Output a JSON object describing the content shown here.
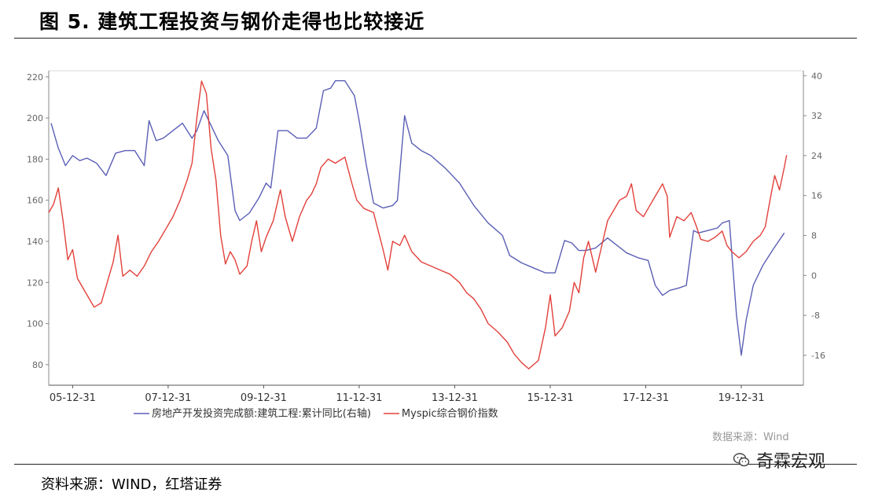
{
  "header": {
    "title": "图 5. 建筑工程投资与钢价走得也比较接近"
  },
  "footer": {
    "source": "资料来源：WIND，红塔证券",
    "data_source": "数据来源：Wind",
    "watermark_icon": "wechat-icon",
    "watermark": "奇霖宏观"
  },
  "chart_data": {
    "type": "line",
    "title": "",
    "xlabel": "",
    "x_ticks": [
      "05-12-31",
      "07-12-31",
      "09-12-31",
      "11-12-31",
      "13-12-31",
      "15-12-31",
      "17-12-31",
      "19-12-31"
    ],
    "x_range": [
      2005.0,
      2020.8
    ],
    "y_left": {
      "ticks": [
        80,
        100,
        120,
        140,
        160,
        180,
        200,
        220
      ],
      "range": [
        70,
        223
      ]
    },
    "y_right": {
      "ticks": [
        -16,
        -8,
        0,
        8,
        16,
        24,
        32,
        40
      ],
      "range": [
        -22,
        41
      ]
    },
    "legend_position": "bottom-left",
    "grid": false,
    "series": [
      {
        "name": "房地产开发投资完成额:建筑工程:累计同比(右轴)",
        "axis": "right",
        "color": "#5b5fb5",
        "points": [
          [
            2005.05,
            30.5
          ],
          [
            2005.2,
            25.5
          ],
          [
            2005.35,
            22.0
          ],
          [
            2005.5,
            24.0
          ],
          [
            2005.65,
            23.0
          ],
          [
            2005.8,
            23.5
          ],
          [
            2006.0,
            22.5
          ],
          [
            2006.2,
            20.0
          ],
          [
            2006.4,
            24.5
          ],
          [
            2006.6,
            25.0
          ],
          [
            2006.8,
            25.0
          ],
          [
            2007.0,
            22.0
          ],
          [
            2007.1,
            31.0
          ],
          [
            2007.25,
            27.0
          ],
          [
            2007.4,
            27.5
          ],
          [
            2007.6,
            29.0
          ],
          [
            2007.8,
            30.5
          ],
          [
            2008.0,
            27.5
          ],
          [
            2008.1,
            29.0
          ],
          [
            2008.25,
            33.0
          ],
          [
            2008.4,
            30.0
          ],
          [
            2008.55,
            27.0
          ],
          [
            2008.75,
            24.0
          ],
          [
            2008.9,
            13.0
          ],
          [
            2009.0,
            11.0
          ],
          [
            2009.2,
            12.5
          ],
          [
            2009.4,
            15.5
          ],
          [
            2009.55,
            18.5
          ],
          [
            2009.65,
            17.5
          ],
          [
            2009.8,
            29.0
          ],
          [
            2010.0,
            29.0
          ],
          [
            2010.2,
            27.5
          ],
          [
            2010.4,
            27.5
          ],
          [
            2010.6,
            29.5
          ],
          [
            2010.75,
            37.0
          ],
          [
            2010.9,
            37.5
          ],
          [
            2011.0,
            39.0
          ],
          [
            2011.2,
            39.0
          ],
          [
            2011.4,
            36.0
          ],
          [
            2011.5,
            31.0
          ],
          [
            2011.65,
            22.0
          ],
          [
            2011.8,
            14.5
          ],
          [
            2012.0,
            13.5
          ],
          [
            2012.2,
            14.0
          ],
          [
            2012.3,
            15.0
          ],
          [
            2012.45,
            32.0
          ],
          [
            2012.6,
            26.5
          ],
          [
            2012.8,
            25.0
          ],
          [
            2013.0,
            24.0
          ],
          [
            2013.3,
            21.5
          ],
          [
            2013.6,
            18.5
          ],
          [
            2013.9,
            14.0
          ],
          [
            2014.2,
            10.5
          ],
          [
            2014.5,
            8.0
          ],
          [
            2014.65,
            4.0
          ],
          [
            2014.9,
            2.5
          ],
          [
            2015.15,
            1.5
          ],
          [
            2015.4,
            0.5
          ],
          [
            2015.6,
            0.5
          ],
          [
            2015.8,
            7.0
          ],
          [
            2015.95,
            6.5
          ],
          [
            2016.1,
            5.0
          ],
          [
            2016.25,
            5.0
          ],
          [
            2016.45,
            5.5
          ],
          [
            2016.7,
            7.5
          ],
          [
            2016.9,
            6.0
          ],
          [
            2017.1,
            4.5
          ],
          [
            2017.35,
            3.5
          ],
          [
            2017.55,
            3.0
          ],
          [
            2017.7,
            -2.0
          ],
          [
            2017.85,
            -4.0
          ],
          [
            2018.0,
            -3.0
          ],
          [
            2018.2,
            -2.5
          ],
          [
            2018.35,
            -2.0
          ],
          [
            2018.5,
            9.0
          ],
          [
            2018.6,
            8.5
          ],
          [
            2018.8,
            9.0
          ],
          [
            2019.0,
            9.5
          ],
          [
            2019.1,
            10.5
          ],
          [
            2019.25,
            11.0
          ],
          [
            2019.4,
            -8.0
          ],
          [
            2019.5,
            -16.0
          ],
          [
            2019.6,
            -9.0
          ],
          [
            2019.75,
            -2.0
          ],
          [
            2019.95,
            2.0
          ],
          [
            2020.15,
            5.0
          ],
          [
            2020.4,
            8.5
          ]
        ]
      },
      {
        "name": "Myspic综合钢价指数",
        "axis": "left",
        "color": "#e2403a",
        "points": [
          [
            2005.0,
            154
          ],
          [
            2005.1,
            158
          ],
          [
            2005.2,
            166
          ],
          [
            2005.3,
            150
          ],
          [
            2005.4,
            131
          ],
          [
            2005.5,
            136
          ],
          [
            2005.6,
            122
          ],
          [
            2005.8,
            114
          ],
          [
            2005.95,
            108
          ],
          [
            2006.1,
            110
          ],
          [
            2006.25,
            122
          ],
          [
            2006.35,
            130
          ],
          [
            2006.45,
            143
          ],
          [
            2006.55,
            123
          ],
          [
            2006.7,
            126
          ],
          [
            2006.85,
            123
          ],
          [
            2007.0,
            128
          ],
          [
            2007.15,
            135
          ],
          [
            2007.3,
            140
          ],
          [
            2007.45,
            146
          ],
          [
            2007.6,
            152
          ],
          [
            2007.75,
            160
          ],
          [
            2007.9,
            170
          ],
          [
            2008.0,
            178
          ],
          [
            2008.1,
            200
          ],
          [
            2008.2,
            218
          ],
          [
            2008.3,
            212
          ],
          [
            2008.4,
            185
          ],
          [
            2008.5,
            170
          ],
          [
            2008.6,
            143
          ],
          [
            2008.7,
            129
          ],
          [
            2008.8,
            135
          ],
          [
            2008.9,
            131
          ],
          [
            2009.0,
            124
          ],
          [
            2009.15,
            128
          ],
          [
            2009.25,
            140
          ],
          [
            2009.35,
            150
          ],
          [
            2009.45,
            135
          ],
          [
            2009.55,
            142
          ],
          [
            2009.7,
            150
          ],
          [
            2009.85,
            165
          ],
          [
            2009.95,
            152
          ],
          [
            2010.1,
            140
          ],
          [
            2010.25,
            152
          ],
          [
            2010.4,
            160
          ],
          [
            2010.5,
            163
          ],
          [
            2010.6,
            168
          ],
          [
            2010.7,
            176
          ],
          [
            2010.85,
            180
          ],
          [
            2011.0,
            178
          ],
          [
            2011.2,
            181
          ],
          [
            2011.35,
            168
          ],
          [
            2011.45,
            160
          ],
          [
            2011.6,
            156
          ],
          [
            2011.8,
            154
          ],
          [
            2012.0,
            136
          ],
          [
            2012.1,
            126
          ],
          [
            2012.2,
            140
          ],
          [
            2012.35,
            138
          ],
          [
            2012.45,
            143
          ],
          [
            2012.6,
            135
          ],
          [
            2012.8,
            130
          ],
          [
            2013.0,
            128
          ],
          [
            2013.2,
            126
          ],
          [
            2013.4,
            124
          ],
          [
            2013.6,
            120
          ],
          [
            2013.75,
            115
          ],
          [
            2013.9,
            112
          ],
          [
            2014.05,
            107
          ],
          [
            2014.2,
            100
          ],
          [
            2014.4,
            96
          ],
          [
            2014.6,
            91
          ],
          [
            2014.75,
            85
          ],
          [
            2014.9,
            81
          ],
          [
            2015.05,
            78
          ],
          [
            2015.25,
            82
          ],
          [
            2015.4,
            98
          ],
          [
            2015.5,
            114
          ],
          [
            2015.6,
            94
          ],
          [
            2015.75,
            98
          ],
          [
            2015.9,
            106
          ],
          [
            2016.0,
            120
          ],
          [
            2016.1,
            115
          ],
          [
            2016.2,
            132
          ],
          [
            2016.3,
            140
          ],
          [
            2016.45,
            125
          ],
          [
            2016.6,
            140
          ],
          [
            2016.7,
            150
          ],
          [
            2016.8,
            154
          ],
          [
            2016.95,
            160
          ],
          [
            2017.1,
            162
          ],
          [
            2017.2,
            168
          ],
          [
            2017.3,
            155
          ],
          [
            2017.45,
            152
          ],
          [
            2017.55,
            156
          ],
          [
            2017.7,
            162
          ],
          [
            2017.85,
            168
          ],
          [
            2017.95,
            162
          ],
          [
            2018.0,
            142
          ],
          [
            2018.15,
            152
          ],
          [
            2018.3,
            150
          ],
          [
            2018.45,
            154
          ],
          [
            2018.55,
            148
          ],
          [
            2018.65,
            141
          ],
          [
            2018.8,
            140
          ],
          [
            2018.95,
            142
          ],
          [
            2019.1,
            145
          ],
          [
            2019.2,
            138
          ],
          [
            2019.3,
            135
          ],
          [
            2019.45,
            132
          ],
          [
            2019.6,
            135
          ],
          [
            2019.75,
            140
          ],
          [
            2019.9,
            143
          ],
          [
            2020.0,
            147
          ],
          [
            2020.1,
            160
          ],
          [
            2020.2,
            172
          ],
          [
            2020.3,
            165
          ],
          [
            2020.4,
            176
          ],
          [
            2020.45,
            182
          ]
        ]
      }
    ]
  }
}
